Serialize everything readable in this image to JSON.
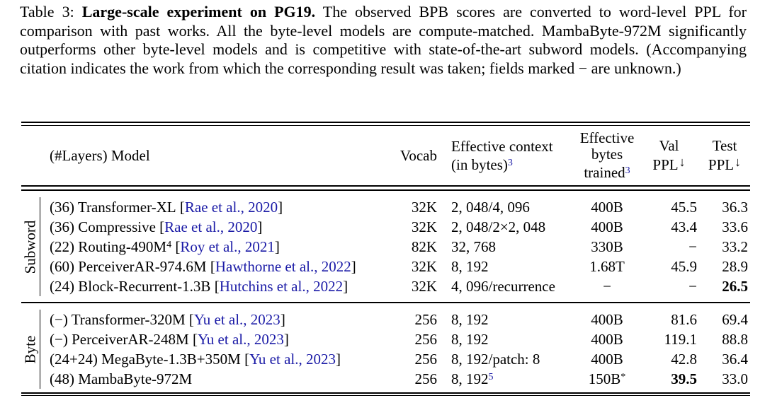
{
  "colors": {
    "citation_blue": "#1a1aa6",
    "text": "#000000",
    "background": "#ffffff"
  },
  "caption": {
    "prefix": "Table 3: ",
    "bold": "Large-scale experiment on PG19.",
    "body": " The observed BPB scores are converted to word-level PPL for comparison with past works. All the byte-level models are compute-matched. MambaByte-972M significantly outperforms other byte-level models and is competitive with state-of-the-art subword models. (Accompanying citation indicates the work from which the corresponding result was taken; fields marked − are unknown.)"
  },
  "table": {
    "header": {
      "model": "(#Layers) Model",
      "vocab": "Vocab",
      "context_line1": "Effective context",
      "context_line2": "(in bytes)",
      "context_sup": "3",
      "bytes_line1": "Effective",
      "bytes_line2": "bytes",
      "bytes_line3": "trained",
      "bytes_sup": "3",
      "val_line1": "Val",
      "val_line2": "PPL",
      "test_line1": "Test",
      "test_line2": "PPL",
      "arrow": "↓"
    },
    "sections": [
      {
        "label": "Subword",
        "rows": [
          {
            "model_pre": "(36) Transformer-XL",
            "model_sup": "",
            "cite_open": " [",
            "cite": "Rae et al., 2020",
            "cite_close": "]",
            "vocab": "32K",
            "context": "2, 048/4, 096",
            "context_sup": "",
            "bytes": "400B",
            "bytes_sup": "",
            "val": "45.5",
            "test": "36.3"
          },
          {
            "model_pre": "(36) Compressive",
            "model_sup": "",
            "cite_open": " [",
            "cite": "Rae et al., 2020",
            "cite_close": "]",
            "vocab": "32K",
            "context": "2, 048/2×2, 048",
            "context_sup": "",
            "bytes": "400B",
            "bytes_sup": "",
            "val": "43.4",
            "test": "33.6"
          },
          {
            "model_pre": "(22) Routing-490M",
            "model_sup": "4",
            "cite_open": " [",
            "cite": "Roy et al., 2021",
            "cite_close": "]",
            "vocab": "82K",
            "context": "32, 768",
            "context_sup": "",
            "bytes": "330B",
            "bytes_sup": "",
            "val": "−",
            "test": "33.2"
          },
          {
            "model_pre": "(60) PerceiverAR-974.6M",
            "model_sup": "",
            "cite_open": " [",
            "cite": "Hawthorne et al., 2022",
            "cite_close": "]",
            "vocab": "32K",
            "context": "8, 192",
            "context_sup": "",
            "bytes": "1.68T",
            "bytes_sup": "",
            "val": "45.9",
            "test": "28.9"
          },
          {
            "model_pre": "(24) Block-Recurrent-1.3B",
            "model_sup": "",
            "cite_open": " [",
            "cite": "Hutchins et al., 2022",
            "cite_close": "]",
            "vocab": "32K",
            "context": "4, 096/recurrence",
            "context_sup": "",
            "bytes": "−",
            "bytes_sup": "",
            "val": "−",
            "test": "26.5"
          }
        ]
      },
      {
        "label": "Byte",
        "rows": [
          {
            "model_pre": "(−) Transformer-320M",
            "model_sup": "",
            "cite_open": " [",
            "cite": "Yu et al., 2023",
            "cite_close": "]",
            "vocab": "256",
            "context": "8, 192",
            "context_sup": "",
            "bytes": "400B",
            "bytes_sup": "",
            "val": "81.6",
            "test": "69.4"
          },
          {
            "model_pre": "(−) PerceiverAR-248M",
            "model_sup": "",
            "cite_open": " [",
            "cite": "Yu et al., 2023",
            "cite_close": "]",
            "vocab": "256",
            "context": "8, 192",
            "context_sup": "",
            "bytes": "400B",
            "bytes_sup": "",
            "val": "119.1",
            "test": "88.8"
          },
          {
            "model_pre": "(24+24) MegaByte-1.3B+350M",
            "model_sup": "",
            "cite_open": " [",
            "cite": "Yu et al., 2023",
            "cite_close": "]",
            "vocab": "256",
            "context": "8, 192/patch: 8",
            "context_sup": "",
            "bytes": "400B",
            "bytes_sup": "",
            "val": "42.8",
            "test": "36.4"
          },
          {
            "model_pre": "(48) MambaByte-972M",
            "model_sup": "",
            "cite_open": "",
            "cite": "",
            "cite_close": "",
            "vocab": "256",
            "context": "8, 192",
            "context_sup": "5",
            "bytes": "150B",
            "bytes_sup": "*",
            "val": "39.5",
            "test": "33.0"
          }
        ]
      }
    ]
  }
}
